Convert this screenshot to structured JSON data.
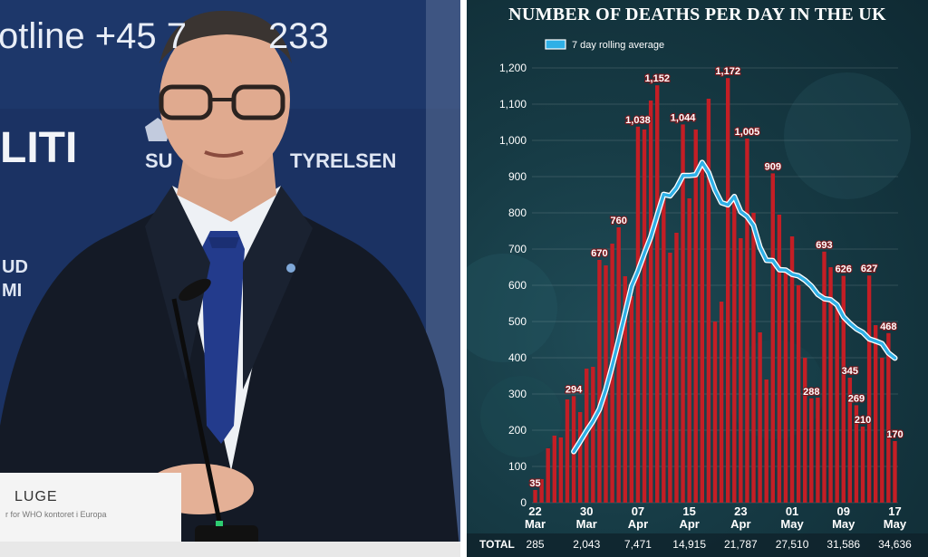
{
  "photo": {
    "backdrop_line1": "otline +45 7",
    "backdrop_line1b": "233",
    "backdrop_logo1": "LITI",
    "backdrop_logo2a": "SU",
    "backdrop_logo2b": "TYRELSEN",
    "backdrop_side1": "UD",
    "backdrop_side2": "MI",
    "nameplate": "LUGE",
    "nameplate_sub": "r for WHO kontoret i Europa"
  },
  "chart_data": {
    "type": "bar",
    "title": "NUMBER OF DEATHS PER DAY IN THE UK",
    "legend": [
      {
        "name": "7 day rolling average",
        "color": "#2fb0e6"
      }
    ],
    "ylim": [
      0,
      1200
    ],
    "yticks": [
      "0",
      "100",
      "200",
      "300",
      "400",
      "500",
      "600",
      "700",
      "800",
      "900",
      "1,000",
      "1,100",
      "1,200"
    ],
    "ytick_values": [
      0,
      100,
      200,
      300,
      400,
      500,
      600,
      700,
      800,
      900,
      1000,
      1100,
      1200
    ],
    "grid": true,
    "bar_color": "#c41e25",
    "line_color": "#2fb0e6",
    "days": 57,
    "values": [
      35,
      65,
      150,
      185,
      180,
      285,
      294,
      250,
      370,
      375,
      670,
      655,
      715,
      760,
      625,
      570,
      1038,
      1030,
      1110,
      1152,
      840,
      690,
      745,
      1044,
      840,
      1030,
      935,
      1115,
      500,
      555,
      1172,
      850,
      730,
      1005,
      800,
      470,
      340,
      909,
      795,
      640,
      735,
      600,
      400,
      288,
      290,
      693,
      650,
      550,
      626,
      345,
      269,
      210,
      627,
      490,
      400,
      468,
      170
    ],
    "rolling_average": [
      null,
      null,
      null,
      null,
      null,
      null,
      141,
      169,
      198,
      225,
      258,
      312,
      378,
      449,
      523,
      598,
      639,
      688,
      734,
      793,
      851,
      847,
      869,
      903,
      903,
      905,
      939,
      911,
      863,
      828,
      822,
      845,
      803,
      790,
      765,
      705,
      669,
      668,
      643,
      642,
      630,
      626,
      614,
      598,
      575,
      563,
      560,
      546,
      513,
      495,
      480,
      470,
      452,
      446,
      439,
      413,
      399
    ],
    "data_labels": [
      {
        "day": 0,
        "text": "35"
      },
      {
        "day": 6,
        "text": "294"
      },
      {
        "day": 10,
        "text": "670"
      },
      {
        "day": 13,
        "text": "760"
      },
      {
        "day": 16,
        "text": "1,038"
      },
      {
        "day": 19,
        "text": "1,152"
      },
      {
        "day": 23,
        "text": "1,044"
      },
      {
        "day": 30,
        "text": "1,172"
      },
      {
        "day": 33,
        "text": "1,005"
      },
      {
        "day": 37,
        "text": "909"
      },
      {
        "day": 43,
        "text": "288"
      },
      {
        "day": 45,
        "text": "693"
      },
      {
        "day": 48,
        "text": "626"
      },
      {
        "day": 49,
        "text": "345"
      },
      {
        "day": 50,
        "text": "269"
      },
      {
        "day": 51,
        "text": "210"
      },
      {
        "day": 52,
        "text": "627"
      },
      {
        "day": 55,
        "text": "468"
      },
      {
        "day": 56,
        "text": "170"
      }
    ],
    "x_ticks": [
      {
        "day": 0,
        "line1": "22",
        "line2": "Mar"
      },
      {
        "day": 8,
        "line1": "30",
        "line2": "Mar"
      },
      {
        "day": 16,
        "line1": "07",
        "line2": "Apr"
      },
      {
        "day": 24,
        "line1": "15",
        "line2": "Apr"
      },
      {
        "day": 32,
        "line1": "23",
        "line2": "Apr"
      },
      {
        "day": 40,
        "line1": "01",
        "line2": "May"
      },
      {
        "day": 48,
        "line1": "09",
        "line2": "May"
      },
      {
        "day": 56,
        "line1": "17",
        "line2": "May"
      }
    ],
    "totals_label": "TOTAL",
    "totals": [
      {
        "day": 0,
        "text": "285"
      },
      {
        "day": 8,
        "text": "2,043"
      },
      {
        "day": 16,
        "text": "7,471"
      },
      {
        "day": 24,
        "text": "14,915"
      },
      {
        "day": 32,
        "text": "21,787"
      },
      {
        "day": 40,
        "text": "27,510"
      },
      {
        "day": 48,
        "text": "31,586"
      },
      {
        "day": 56,
        "text": "34,636"
      }
    ]
  }
}
